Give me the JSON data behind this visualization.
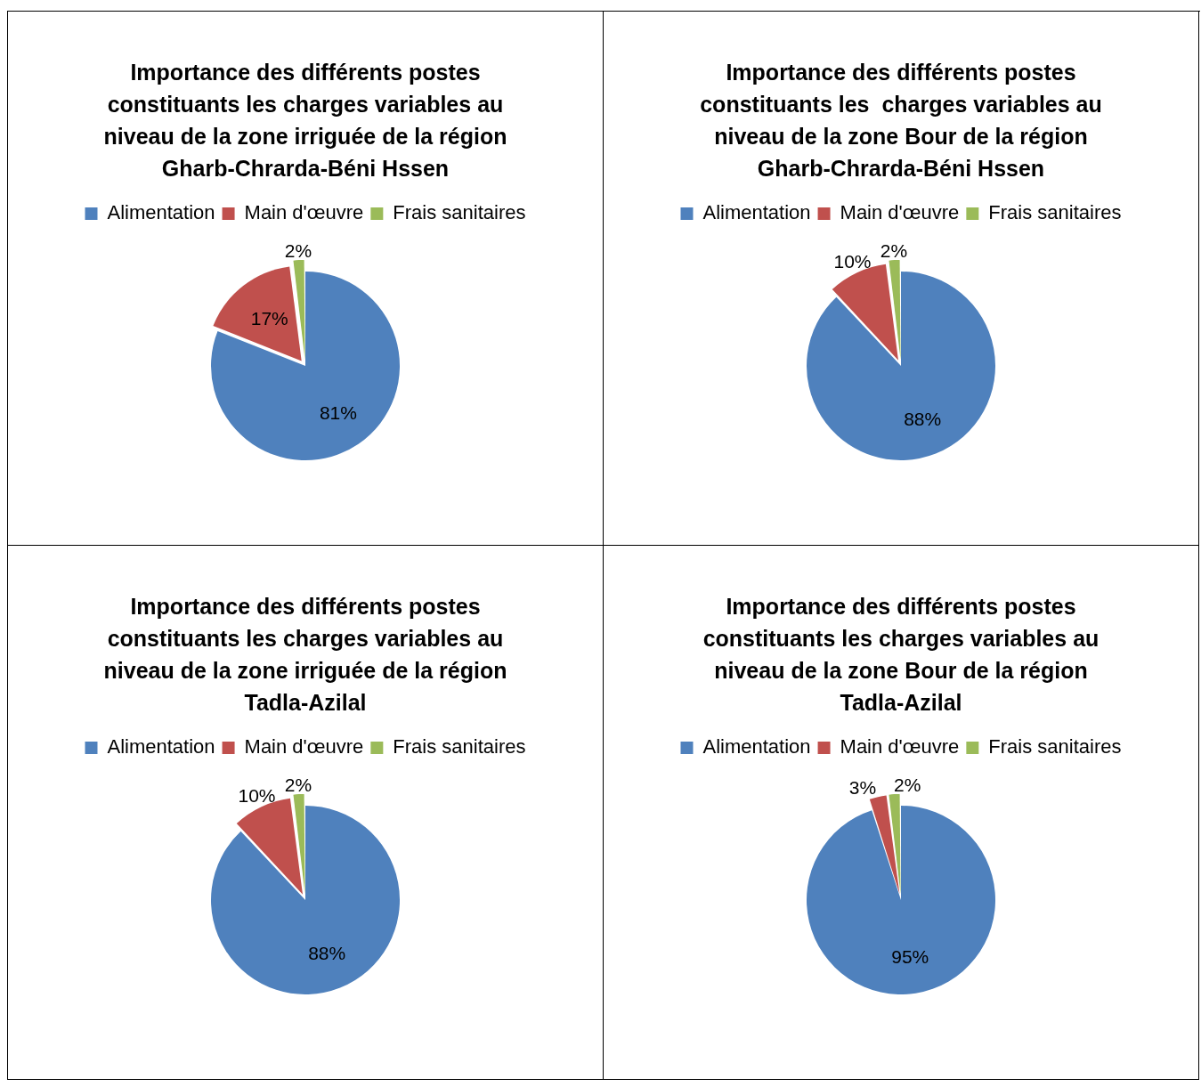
{
  "chart_data": [
    {
      "type": "pie",
      "title": "Importance des différents postes constituants les charges variables au niveau de la zone irriguée de la région Gharb-Chrarda-Béni Hssen",
      "categories": [
        "Alimentation",
        "Main d'œuvre",
        "Frais sanitaires"
      ],
      "values": [
        81,
        17,
        2
      ],
      "value_labels": [
        "81%",
        "17%",
        "2%"
      ],
      "colors": [
        "#4f81bd",
        "#c0504d",
        "#9bbb59"
      ],
      "legend": "top"
    },
    {
      "type": "pie",
      "title": "Importance des différents postes constituants les  charges variables au niveau de la zone Bour de la région Gharb-Chrarda-Béni Hssen",
      "categories": [
        "Alimentation",
        "Main d'œuvre",
        "Frais sanitaires"
      ],
      "values": [
        88,
        10,
        2
      ],
      "value_labels": [
        "88%",
        "10%",
        "2%"
      ],
      "colors": [
        "#4f81bd",
        "#c0504d",
        "#9bbb59"
      ],
      "legend": "top"
    },
    {
      "type": "pie",
      "title": "Importance des différents postes constituants les charges variables au niveau de la zone irriguée de la région Tadla-Azilal",
      "categories": [
        "Alimentation",
        "Main d'œuvre",
        "Frais sanitaires"
      ],
      "values": [
        88,
        10,
        2
      ],
      "value_labels": [
        "88%",
        "10%",
        "2%"
      ],
      "colors": [
        "#4f81bd",
        "#c0504d",
        "#9bbb59"
      ],
      "legend": "top"
    },
    {
      "type": "pie",
      "title": "Importance des différents postes constituants les charges variables au niveau de la zone Bour de la région Tadla-Azilal",
      "categories": [
        "Alimentation",
        "Main d'œuvre",
        "Frais sanitaires"
      ],
      "values": [
        95,
        3,
        2
      ],
      "value_labels": [
        "95%",
        "3%",
        "2%"
      ],
      "colors": [
        "#4f81bd",
        "#c0504d",
        "#9bbb59"
      ],
      "legend": "top"
    }
  ]
}
